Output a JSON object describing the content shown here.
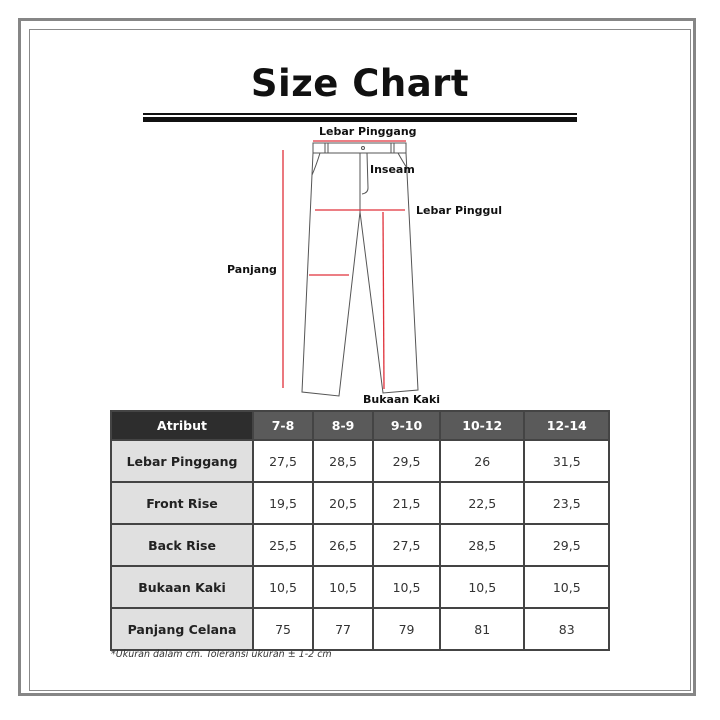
{
  "title": "Size Chart",
  "diagram_labels": {
    "waist": "Lebar Pinggang",
    "inseam": "Inseam",
    "hip": "Lebar Pinggul",
    "length": "Panjang",
    "leg_opening": "Bukaan Kaki"
  },
  "colors": {
    "measure_line": "#e0303a",
    "header_dark": "#2d2d2d",
    "header": "#5a5a5a",
    "attr_cell": "#e0e0e0"
  },
  "table": {
    "headers": [
      "Atribut",
      "7-8",
      "8-9",
      "9-10",
      "10-12",
      "12-14"
    ],
    "rows": [
      {
        "label": "Lebar Pinggang",
        "values": [
          "27,5",
          "28,5",
          "29,5",
          "26",
          "31,5"
        ]
      },
      {
        "label": "Front Rise",
        "values": [
          "19,5",
          "20,5",
          "21,5",
          "22,5",
          "23,5"
        ]
      },
      {
        "label": "Back Rise",
        "values": [
          "25,5",
          "26,5",
          "27,5",
          "28,5",
          "29,5"
        ]
      },
      {
        "label": "Bukaan Kaki",
        "values": [
          "10,5",
          "10,5",
          "10,5",
          "10,5",
          "10,5"
        ]
      },
      {
        "label": "Panjang Celana",
        "values": [
          "75",
          "77",
          "79",
          "81",
          "83"
        ]
      }
    ]
  },
  "note": "*Ukuran dalam cm. Toleransi ukuran ± 1-2 cm"
}
